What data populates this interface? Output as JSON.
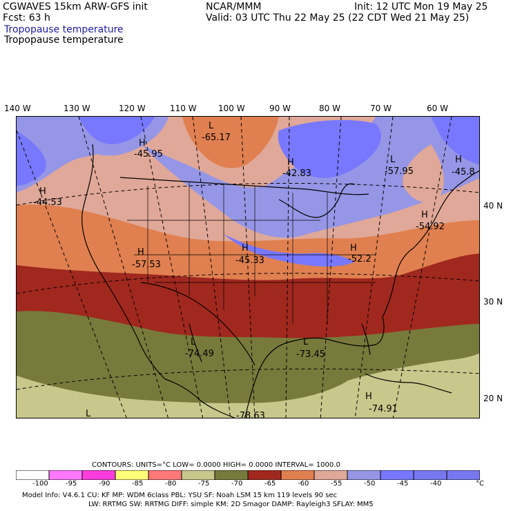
{
  "header": {
    "line1_left": "CGWAVES 15km ARW-GFS init",
    "line1_mid": "NCAR/MMM",
    "line1_right": "Init: 12 UTC Mon 19 May 25",
    "line2_left": "Fcst:   63 h",
    "line2_right": "Valid: 03 UTC Thu 22 May 25 (22 CDT Wed 21 May 25)",
    "field_label_1": "Tropopause temperature",
    "field_label_2": "Tropopause temperature"
  },
  "lon_labels": [
    "140 W",
    "130 W",
    "120 W",
    "110 W",
    "100 W",
    "90 W",
    "80 W",
    "70 W",
    "60 W"
  ],
  "lat_labels": [
    "40 N",
    "30 N",
    "20 N"
  ],
  "extrema": [
    {
      "kind": "H",
      "value": "-45.95"
    },
    {
      "kind": "L",
      "value": "-65.17"
    },
    {
      "kind": "H",
      "value": "-42.83"
    },
    {
      "kind": "L",
      "value": "-57.95"
    },
    {
      "kind": "H",
      "value": "-45.8"
    },
    {
      "kind": "H",
      "value": "-44.53"
    },
    {
      "kind": "H",
      "value": "-54.92"
    },
    {
      "kind": "H",
      "value": "-57.53"
    },
    {
      "kind": "H",
      "value": "-45.33"
    },
    {
      "kind": "H",
      "value": "-52.2"
    },
    {
      "kind": "L",
      "value": "-74.49"
    },
    {
      "kind": "L",
      "value": "-73.45"
    },
    {
      "kind": "H",
      "value": "-74.91"
    },
    {
      "kind": "L",
      "value": ""
    },
    {
      "kind": "",
      "value": "-78.63"
    }
  ],
  "contours": {
    "text": "CONTOURS:  UNITS=°C  LOW=  0.0000      HIGH=  0.0000      INTERVAL=   1000.0"
  },
  "colorbar": {
    "labels": [
      "-100",
      "-95",
      "-90",
      "-85",
      "-80",
      "-75",
      "-70",
      "-65",
      "-60",
      "-55",
      "-50",
      "-45",
      "-40"
    ],
    "unit": "°C",
    "colors": [
      "#ffffff",
      "#ff78ff",
      "#ff3cdc",
      "#ffff78",
      "#ff7878",
      "#c8c88c",
      "#787a3c",
      "#a0281e",
      "#e08050",
      "#e0a898",
      "#9696e6",
      "#7878ff",
      "#7878f0"
    ]
  },
  "model_info": {
    "line1": "Model Info: V4.6.1     CU: KF       MP: WDM 6class   PBL: YSU       SF: Noah LSM      15 km   119 levels    90 sec",
    "line2": "LW: RRTMG     SW: RRTMG   DIFF: simple KM: 2D Smagor DAMP: Rayleigh3  SFLAY: MM5"
  }
}
